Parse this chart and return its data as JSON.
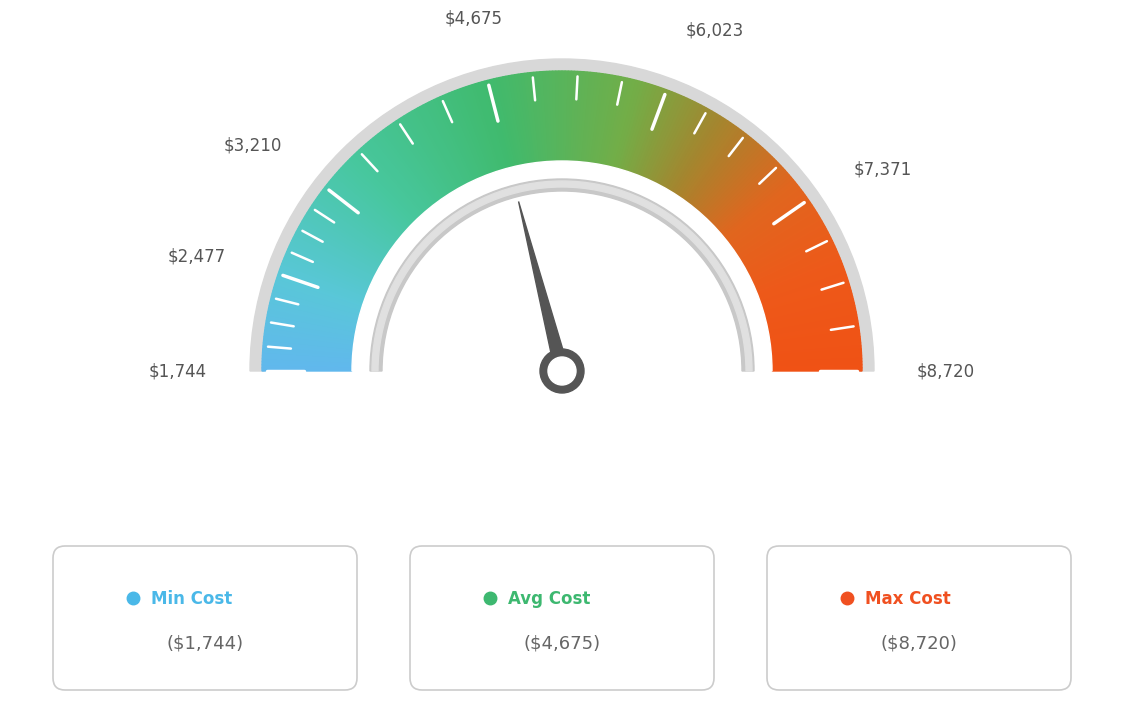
{
  "min_val": 1744,
  "max_val": 8720,
  "avg_val": 4675,
  "tick_labels": [
    "$1,744",
    "$2,477",
    "$3,210",
    "$4,675",
    "$6,023",
    "$7,371",
    "$8,720"
  ],
  "tick_values": [
    1744,
    2477,
    3210,
    4675,
    6023,
    7371,
    8720
  ],
  "legend_items": [
    {
      "label": "Min Cost",
      "value": "($1,744)",
      "color": "#4ab8e8"
    },
    {
      "label": "Avg Cost",
      "value": "($4,675)",
      "color": "#3db870"
    },
    {
      "label": "Max Cost",
      "value": "($8,720)",
      "color": "#f05020"
    }
  ],
  "bg_color": "#ffffff",
  "colors_rgb": [
    [
      0.0,
      [
        0.38,
        0.72,
        0.93
      ]
    ],
    [
      0.1,
      [
        0.35,
        0.78,
        0.85
      ]
    ],
    [
      0.25,
      [
        0.28,
        0.78,
        0.62
      ]
    ],
    [
      0.42,
      [
        0.25,
        0.73,
        0.43
      ]
    ],
    [
      0.58,
      [
        0.45,
        0.68,
        0.28
      ]
    ],
    [
      0.68,
      [
        0.65,
        0.52,
        0.18
      ]
    ],
    [
      0.78,
      [
        0.88,
        0.4,
        0.12
      ]
    ],
    [
      0.88,
      [
        0.93,
        0.35,
        0.1
      ]
    ],
    [
      1.0,
      [
        0.94,
        0.32,
        0.08
      ]
    ]
  ]
}
